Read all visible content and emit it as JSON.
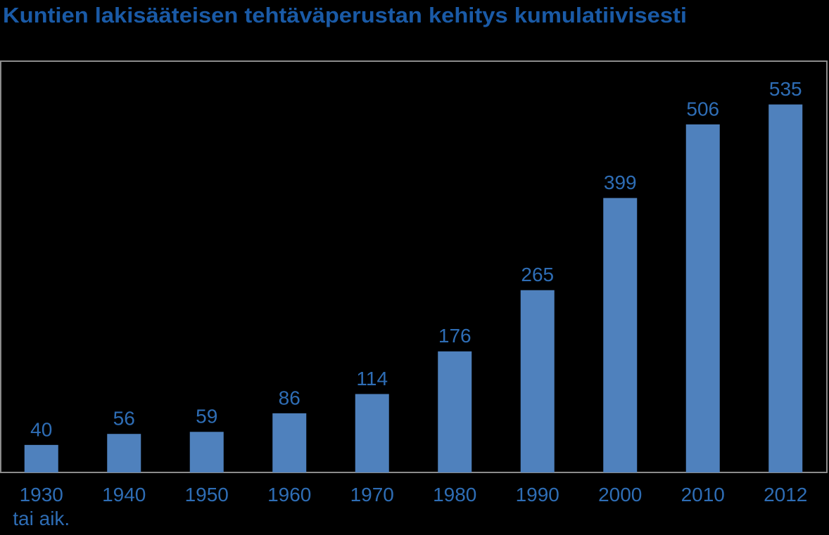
{
  "chart_data": {
    "type": "bar",
    "title": "Kuntien lakisääteisen tehtäväperustan kehitys kumulatiivisesti",
    "categories": [
      "1930\ntai aik.",
      "1940",
      "1950",
      "1960",
      "1970",
      "1980",
      "1990",
      "2000",
      "2010",
      "2012"
    ],
    "values": [
      40,
      56,
      59,
      86,
      114,
      176,
      265,
      399,
      506,
      535
    ],
    "color": "#4f81bd",
    "ylim": [
      0,
      600
    ]
  }
}
